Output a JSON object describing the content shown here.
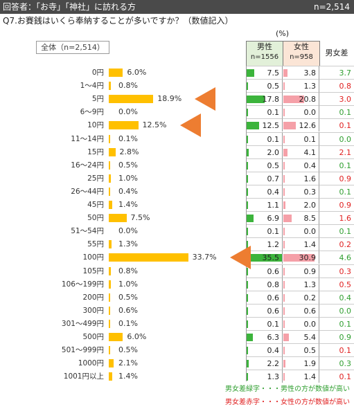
{
  "header": {
    "left": "回答者：「お寺」「神社」に訪れる方",
    "right": "n=2,514"
  },
  "question": "Q7.お賽銭はいくら奉納することが多いですか？（数値記入）",
  "total_label": "全体（n=2,514）",
  "unit": "(%)",
  "table_header": {
    "male": "男性",
    "male_n": "n=1556",
    "female": "女性",
    "female_n": "n=958",
    "diff": "男女差"
  },
  "notes": {
    "green": "男女差緑字・・・男性の方が数値が高い",
    "red": "男女差赤字・・・女性の方が数値が高い"
  },
  "colors": {
    "bar": "#ffc000",
    "male_bar": "#3cb43c",
    "female_bar": "#f5a0a8",
    "green_text": "#2e9e2e",
    "red_text": "#e02020",
    "arrow": "#ed7d31"
  },
  "chart_data": {
    "type": "bar",
    "categories": [
      "0円",
      "1〜4円",
      "5円",
      "6〜9円",
      "10円",
      "11〜14円",
      "15円",
      "16〜24円",
      "25円",
      "26〜44円",
      "45円",
      "50円",
      "51〜54円",
      "55円",
      "100円",
      "105円",
      "106〜199円",
      "200円",
      "300円",
      "301〜499円",
      "500円",
      "501〜999円",
      "1000円",
      "1001円以上"
    ],
    "series": [
      {
        "name": "全体（n=2,514）",
        "values": [
          6.0,
          0.8,
          18.9,
          0.0,
          12.5,
          0.1,
          2.8,
          0.5,
          1.0,
          0.4,
          1.4,
          7.5,
          0.0,
          1.3,
          33.7,
          0.8,
          1.0,
          0.5,
          0.6,
          0.1,
          6.0,
          0.5,
          2.1,
          1.4
        ]
      },
      {
        "name": "男性",
        "values": [
          7.5,
          0.5,
          17.8,
          0.1,
          12.5,
          0.1,
          2.0,
          0.5,
          0.7,
          0.4,
          1.1,
          6.9,
          0.1,
          1.2,
          35.5,
          0.6,
          0.8,
          0.6,
          0.6,
          0.1,
          6.3,
          0.4,
          2.2,
          1.3
        ]
      },
      {
        "name": "女性",
        "values": [
          3.8,
          1.3,
          20.8,
          0.0,
          12.6,
          0.1,
          4.1,
          0.4,
          1.6,
          0.3,
          2.0,
          8.5,
          0.0,
          1.4,
          30.9,
          0.9,
          1.3,
          0.2,
          0.6,
          0.0,
          5.4,
          0.5,
          1.9,
          1.4
        ]
      },
      {
        "name": "男女差",
        "values": [
          3.7,
          0.8,
          3.0,
          0.1,
          0.1,
          0.0,
          2.1,
          0.1,
          0.9,
          0.1,
          0.9,
          1.6,
          0.1,
          0.2,
          4.6,
          0.3,
          0.5,
          0.4,
          0.0,
          0.1,
          0.9,
          0.1,
          0.3,
          0.1
        ]
      }
    ],
    "diff_color": [
      "green",
      "red",
      "red",
      "green",
      "red",
      "green",
      "red",
      "green",
      "red",
      "green",
      "red",
      "red",
      "green",
      "red",
      "green",
      "red",
      "red",
      "green",
      "green",
      "green",
      "green",
      "red",
      "green",
      "red"
    ],
    "display": [
      "6.0%",
      "0.8%",
      "18.9%",
      "0.0%",
      "12.5%",
      "0.1%",
      "2.8%",
      "0.5%",
      "1.0%",
      "0.4%",
      "1.4%",
      "7.5%",
      "0.0%",
      "1.3%",
      "33.7%",
      "0.8%",
      "1.0%",
      "0.5%",
      "0.6%",
      "0.1%",
      "6.0%",
      "0.5%",
      "2.1%",
      "1.4%"
    ],
    "table_display": {
      "male": [
        "7.5",
        "0.5",
        "17.8",
        "0.1",
        "12.5",
        "0.1",
        "2.0",
        "0.5",
        "0.7",
        "0.4",
        "1.1",
        "6.9",
        "0.1",
        "1.2",
        "35.5",
        "0.6",
        "0.8",
        "0.6",
        "0.6",
        "0.1",
        "6.3",
        "0.4",
        "2.2",
        "1.3"
      ],
      "female": [
        "3.8",
        "1.3",
        "20.8",
        "0.0",
        "12.6",
        "0.1",
        "4.1",
        "0.4",
        "1.6",
        "0.3",
        "2.0",
        "8.5",
        "0.0",
        "1.4",
        "30.9",
        "0.9",
        "1.3",
        "0.2",
        "0.6",
        "0.0",
        "5.4",
        "0.5",
        "1.9",
        "1.4"
      ],
      "diff": [
        "3.7",
        "0.8",
        "3.0",
        "0.1",
        "0.1",
        "0.0",
        "2.1",
        "0.1",
        "0.9",
        "0.1",
        "0.9",
        "1.6",
        "0.1",
        "0.2",
        "4.6",
        "0.3",
        "0.5",
        "0.4",
        "0.0",
        "0.1",
        "0.9",
        "0.1",
        "0.3",
        "0.1"
      ]
    },
    "highlighted_categories": [
      "5円",
      "10円",
      "100円"
    ],
    "grid": false
  }
}
